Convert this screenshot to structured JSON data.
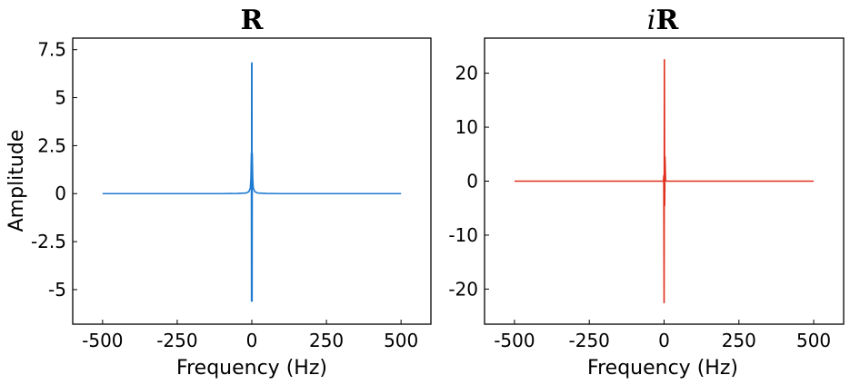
{
  "chart_data": [
    {
      "type": "line",
      "title": "R",
      "xlabel": "Frequency (Hz)",
      "ylabel": "Amplitude",
      "xlim": [
        -600,
        600
      ],
      "ylim": [
        -6.8,
        8.1
      ],
      "xticks": [
        -500,
        -250,
        0,
        250,
        500
      ],
      "xtick_labels": [
        "-500",
        "-250",
        "0",
        "250",
        "500"
      ],
      "yticks": [
        -5,
        -2.5,
        0,
        2.5,
        5,
        7.5
      ],
      "ytick_labels": [
        "-5",
        "-2.5",
        "0",
        "2.5",
        "5",
        "7.5"
      ],
      "grid": false,
      "color": "#1f7bd1",
      "series": [
        {
          "x": [
            -500,
            -400,
            -300,
            -200,
            -100,
            -50,
            -20,
            -10,
            -5,
            -3,
            -1.5,
            -1,
            -0.5,
            0,
            0.5,
            1,
            1.5,
            3,
            5,
            10,
            20,
            50,
            100,
            200,
            300,
            400,
            500
          ],
          "values": [
            0.0,
            0.0,
            0.0,
            0.0,
            0.0,
            0.01,
            0.03,
            0.1,
            0.3,
            0.8,
            2.1,
            -5.6,
            6.8,
            -5.6,
            6.8,
            -5.6,
            2.1,
            0.8,
            0.3,
            0.1,
            0.03,
            0.01,
            0.0,
            0.0,
            0.0,
            0.0,
            0.0
          ]
        }
      ]
    },
    {
      "type": "line",
      "title": "iR",
      "title_italic_prefix": "i",
      "title_bold_part": "R",
      "xlabel": "Frequency (Hz)",
      "ylabel": "",
      "xlim": [
        -600,
        600
      ],
      "ylim": [
        -26.5,
        26.5
      ],
      "xticks": [
        -500,
        -250,
        0,
        250,
        500
      ],
      "xtick_labels": [
        "-500",
        "-250",
        "0",
        "250",
        "500"
      ],
      "yticks": [
        -20,
        -10,
        0,
        10,
        20
      ],
      "ytick_labels": [
        "-20",
        "-10",
        "0",
        "10",
        "20"
      ],
      "grid": false,
      "color": "#e0301e",
      "series": [
        {
          "x": [
            -500,
            -400,
            -300,
            -200,
            -100,
            -50,
            -20,
            -10,
            -5,
            -3,
            -2,
            -1,
            0,
            1,
            2,
            3,
            5,
            10,
            20,
            50,
            100,
            200,
            300,
            400,
            500
          ],
          "values": [
            0.0,
            0.0,
            0.0,
            0.0,
            0.0,
            0.0,
            0.0,
            0.0,
            0.0,
            0.0,
            0.0,
            1.0,
            -22.5,
            22.5,
            -4.5,
            4.5,
            0.1,
            0.0,
            0.0,
            0.0,
            0.0,
            0.0,
            0.0,
            0.0,
            0.0
          ]
        }
      ]
    }
  ]
}
